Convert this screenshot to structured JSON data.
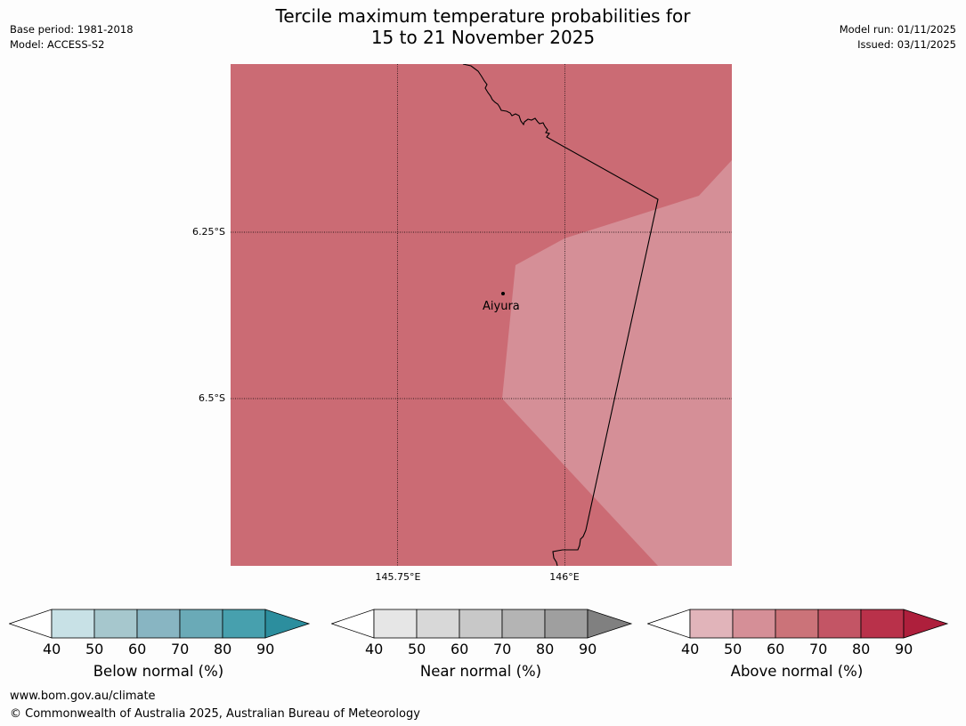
{
  "meta": {
    "base_period": "Base period: 1981-2018",
    "model": "Model: ACCESS-S2",
    "model_run": "Model run: 01/11/2025",
    "issued": "Issued: 03/11/2025"
  },
  "title": {
    "line1": "Tercile maximum temperature probabilities for",
    "line2": "15 to 21 November 2025"
  },
  "map": {
    "lat_labels": [
      "6.25°S",
      "6.5°S"
    ],
    "lon_labels": [
      "145.75°E",
      "146°E"
    ],
    "place": "Aiyura",
    "regions": [
      {
        "category": "Above normal",
        "band": "60–70%",
        "color": "#cb6b74"
      },
      {
        "category": "Above normal",
        "band": "50–60%",
        "color": "#d58f97"
      }
    ]
  },
  "legends": [
    {
      "title": "Below normal (%)",
      "ticks": [
        "40",
        "50",
        "60",
        "70",
        "80",
        "90"
      ],
      "colors": [
        "#ffffff",
        "#c8e1e6",
        "#a6c7cd",
        "#88b5c2",
        "#6aaab7",
        "#47a0ae",
        "#2c8e9e"
      ]
    },
    {
      "title": "Near normal (%)",
      "ticks": [
        "40",
        "50",
        "60",
        "70",
        "80",
        "90"
      ],
      "colors": [
        "#ffffff",
        "#e6e6e6",
        "#d8d8d8",
        "#c8c8c8",
        "#b4b4b4",
        "#9f9f9f",
        "#808080"
      ]
    },
    {
      "title": "Above normal (%)",
      "ticks": [
        "40",
        "50",
        "60",
        "70",
        "80",
        "90"
      ],
      "colors": [
        "#ffffff",
        "#e1b4ba",
        "#d58f97",
        "#cb7379",
        "#c35565",
        "#b9314a",
        "#ae1f3c"
      ]
    }
  ],
  "footer": {
    "url": "www.bom.gov.au/climate",
    "copyright": "© Commonwealth of Australia 2025, Australian Bureau of Meteorology"
  }
}
